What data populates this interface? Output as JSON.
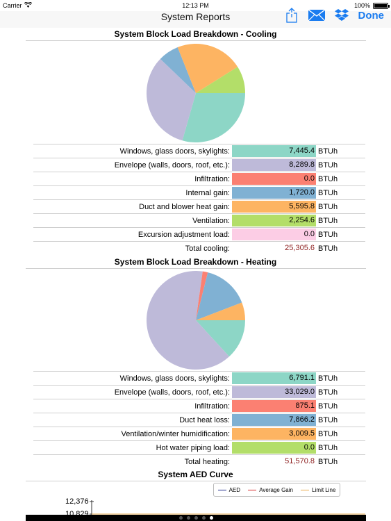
{
  "status_bar": {
    "carrier": "Carrier",
    "time": "12:13 PM",
    "battery": "100%",
    "battery_level": 1.0
  },
  "nav": {
    "title": "System Reports",
    "done_label": "Done"
  },
  "cooling": {
    "title": "System Block Load Breakdown - Cooling",
    "rows": [
      {
        "label": "Windows, glass doors, skylights:",
        "value": "7,445.4",
        "unit": "BTUh",
        "color": "#8dd6c6"
      },
      {
        "label": "Envelope (walls, doors, roof, etc.):",
        "value": "8,289.8",
        "unit": "BTUh",
        "color": "#bebad9"
      },
      {
        "label": "Infiltration:",
        "value": "0.0",
        "unit": "BTUh",
        "color": "#fb8072"
      },
      {
        "label": "Internal gain:",
        "value": "1,720.0",
        "unit": "BTUh",
        "color": "#80b1d3"
      },
      {
        "label": "Duct and blower heat gain:",
        "value": "5,595.8",
        "unit": "BTUh",
        "color": "#fdb462"
      },
      {
        "label": "Ventilation:",
        "value": "2,254.6",
        "unit": "BTUh",
        "color": "#b3de69"
      },
      {
        "label": "Excursion adjustment load:",
        "value": "0.0",
        "unit": "BTUh",
        "color": "#fccde5"
      }
    ],
    "total": {
      "label": "Total cooling:",
      "value": "25,305.6",
      "unit": "BTUh"
    }
  },
  "heating": {
    "title": "System Block Load Breakdown - Heating",
    "rows": [
      {
        "label": "Windows, glass doors, skylights:",
        "value": "6,791.1",
        "unit": "BTUh",
        "color": "#8dd6c6"
      },
      {
        "label": "Envelope (walls, doors, roof, etc.):",
        "value": "33,029.0",
        "unit": "BTUh",
        "color": "#bebad9"
      },
      {
        "label": "Infiltration:",
        "value": "875.1",
        "unit": "BTUh",
        "color": "#fb8072"
      },
      {
        "label": "Duct heat loss:",
        "value": "7,866.2",
        "unit": "BTUh",
        "color": "#80b1d3"
      },
      {
        "label": "Ventilation/winter humidification:",
        "value": "3,009.5",
        "unit": "BTUh",
        "color": "#fdb462"
      },
      {
        "label": "Hot water piping load:",
        "value": "0.0",
        "unit": "BTUh",
        "color": "#b3de69"
      }
    ],
    "total": {
      "label": "Total heating:",
      "value": "51,570.8",
      "unit": "BTUh"
    }
  },
  "aed": {
    "title": "System AED Curve",
    "legend": [
      {
        "name": "AED",
        "color": "#1f2a8a"
      },
      {
        "name": "Average Gain",
        "color": "#d62728"
      },
      {
        "name": "Limit Line",
        "color": "#e8a84a"
      }
    ],
    "y_ticks": [
      "12,376",
      "10,829"
    ]
  },
  "pager": {
    "count": 5,
    "active": 4
  }
}
